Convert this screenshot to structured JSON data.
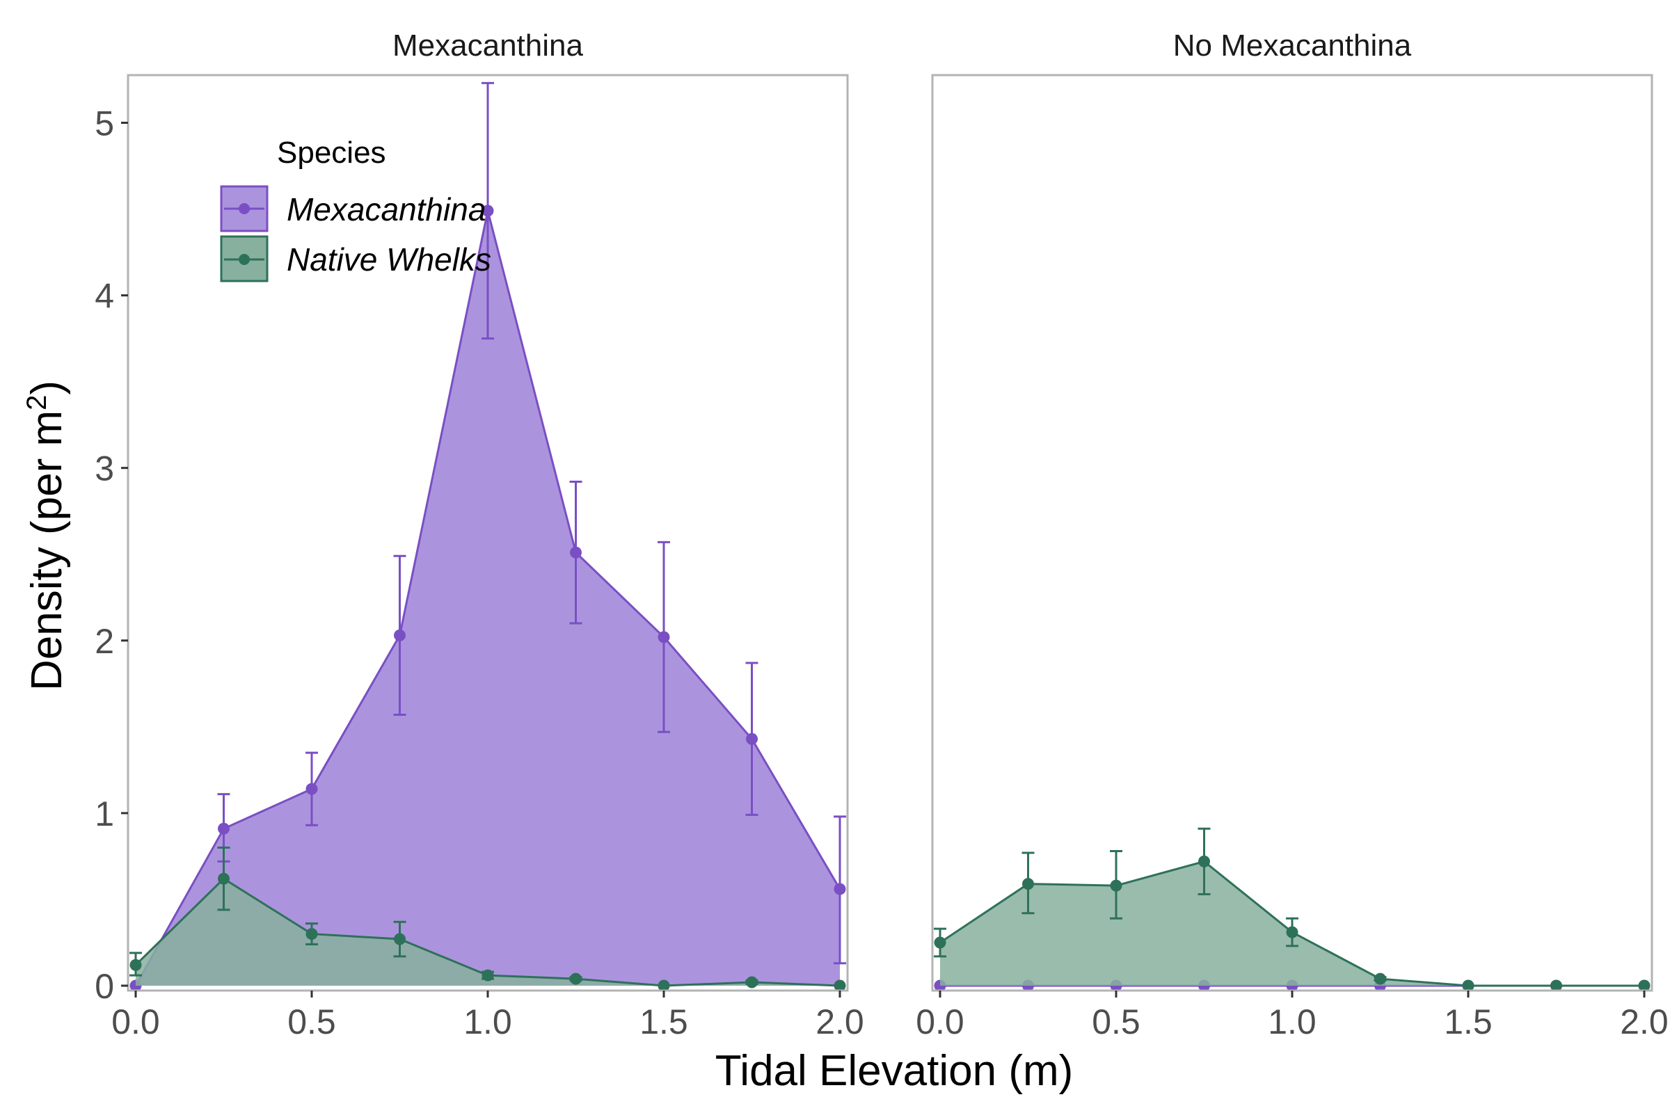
{
  "chart_data": {
    "type": "area",
    "xlabel": "Tidal Elevation (m)",
    "ylabel_main": "Density (per m",
    "ylabel_sup": "2",
    "ylabel_close": ")",
    "xlim": [
      0,
      2
    ],
    "ylim": [
      0,
      5.2
    ],
    "x_ticks": [
      "0.0",
      "0.5",
      "1.0",
      "1.5",
      "2.0"
    ],
    "y_ticks": [
      "0",
      "1",
      "2",
      "3",
      "4",
      "5"
    ],
    "grid": false,
    "legend": {
      "title": "Species",
      "placement": "top-left",
      "entries": [
        "Mexacanthina",
        "Native Whelks"
      ]
    },
    "colors": {
      "mexacanthina_line": "#7a4fc4",
      "mexacanthina_fill": "#ab94dd",
      "whelks_line": "#2e7159",
      "whelks_fill": "#87b09f",
      "panel_border": "#b3b3b3"
    },
    "panels": [
      {
        "title": "Mexacanthina",
        "series": [
          {
            "name": "Mexacanthina",
            "x": [
              0,
              0.25,
              0.5,
              0.75,
              1.0,
              1.25,
              1.5,
              1.75,
              2.0
            ],
            "y": [
              0,
              0.91,
              1.14,
              2.03,
              4.49,
              2.51,
              2.02,
              1.43,
              0.56
            ],
            "err_low": [
              0,
              0.72,
              0.93,
              1.57,
              3.75,
              2.1,
              1.47,
              0.99,
              0.13
            ],
            "err_high": [
              0,
              1.11,
              1.35,
              2.49,
              5.23,
              2.92,
              2.57,
              1.87,
              0.98
            ]
          },
          {
            "name": "Native Whelks",
            "x": [
              0,
              0.25,
              0.5,
              0.75,
              1.0,
              1.25,
              1.5,
              1.75,
              2.0
            ],
            "y": [
              0.12,
              0.62,
              0.3,
              0.27,
              0.06,
              0.04,
              0.0,
              0.02,
              0.0
            ],
            "err_low": [
              0.06,
              0.44,
              0.24,
              0.17,
              0.04,
              0.03,
              0.0,
              0.01,
              0.0
            ],
            "err_high": [
              0.19,
              0.8,
              0.36,
              0.37,
              0.08,
              0.05,
              0.0,
              0.03,
              0.0
            ]
          }
        ]
      },
      {
        "title": "No Mexacanthina",
        "series": [
          {
            "name": "Mexacanthina",
            "x": [
              0,
              0.25,
              0.5,
              0.75,
              1.0,
              1.25,
              1.5,
              1.75,
              2.0
            ],
            "y": [
              0,
              0,
              0,
              0,
              0,
              0,
              0,
              0,
              0
            ],
            "err_low": [
              0,
              0,
              0,
              0,
              0,
              0,
              0,
              0,
              0
            ],
            "err_high": [
              0,
              0,
              0,
              0,
              0,
              0,
              0,
              0,
              0
            ]
          },
          {
            "name": "Native Whelks",
            "x": [
              0,
              0.25,
              0.5,
              0.75,
              1.0,
              1.25,
              1.5,
              1.75,
              2.0
            ],
            "y": [
              0.25,
              0.59,
              0.58,
              0.72,
              0.31,
              0.04,
              0.0,
              0.0,
              0.0
            ],
            "err_low": [
              0.17,
              0.42,
              0.39,
              0.53,
              0.23,
              0.03,
              0.0,
              0.0,
              0.0
            ],
            "err_high": [
              0.33,
              0.77,
              0.78,
              0.91,
              0.39,
              0.05,
              0.0,
              0.0,
              0.0
            ]
          }
        ]
      }
    ]
  }
}
